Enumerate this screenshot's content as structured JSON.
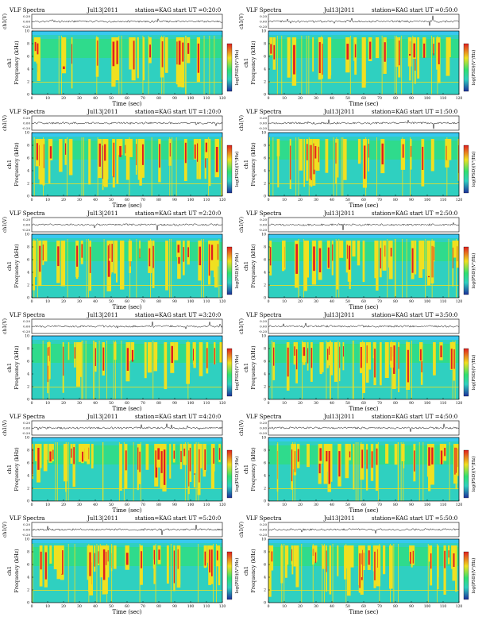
{
  "common": {
    "title_prefix": "VLF Spectra",
    "station": "station=KAG",
    "amp_label": "ch1(V)",
    "amp_ticks": [
      "0.20",
      "0.00",
      "-0.20"
    ],
    "ch_label": "ch1",
    "freq_label": "Frequency (kHz)",
    "freq_ticks": [
      "0",
      "2",
      "4",
      "6",
      "8",
      "10"
    ],
    "time_label": "Time (sec)",
    "time_ticks": [
      "0",
      "10",
      "20",
      "30",
      "40",
      "50",
      "60",
      "70",
      "80",
      "90",
      "100",
      "110",
      "120"
    ],
    "colorbar_label": "log(PSD)(V²/Hz)",
    "colors": {
      "background": "#2fd0c0",
      "mid": "#30e070",
      "high": "#f0e020",
      "peak": "#e02020",
      "low": "#2a8ad8",
      "band_top": "#38c8f0"
    }
  },
  "chart_data": [
    {
      "type": "heatmap",
      "date": "Jul13|2011",
      "start_ut": "start UT =0:20:0",
      "xlabel": "Time (sec)",
      "ylabel": "Frequency (kHz)",
      "xlim": [
        0,
        120
      ],
      "ylim": [
        0,
        10
      ],
      "colorbar": "log(PSD)(V²/Hz)"
    },
    {
      "type": "heatmap",
      "date": "Jul13|2011",
      "start_ut": "start UT =0:50:0",
      "xlabel": "Time (sec)",
      "ylabel": "Frequency (kHz)",
      "xlim": [
        0,
        120
      ],
      "ylim": [
        0,
        10
      ],
      "colorbar": "log(PSD)(V²/Hz)"
    },
    {
      "type": "heatmap",
      "date": "Jul13|2011",
      "start_ut": "start UT =1:20:0",
      "xlabel": "Time (sec)",
      "ylabel": "Frequency (kHz)",
      "xlim": [
        0,
        120
      ],
      "ylim": [
        0,
        10
      ],
      "colorbar": "log(PSD)(V²/Hz)"
    },
    {
      "type": "heatmap",
      "date": "Jul13|2011",
      "start_ut": "start UT =1:50:0",
      "xlabel": "Time (sec)",
      "ylabel": "Frequency (kHz)",
      "xlim": [
        0,
        120
      ],
      "ylim": [
        0,
        10
      ],
      "colorbar": "log(PSD)(V²/Hz)"
    },
    {
      "type": "heatmap",
      "date": "Jul13|2011",
      "start_ut": "start UT =2:20:0",
      "xlabel": "Time (sec)",
      "ylabel": "Frequency (kHz)",
      "xlim": [
        0,
        120
      ],
      "ylim": [
        0,
        10
      ],
      "colorbar": "log(PSD)(V²/Hz)"
    },
    {
      "type": "heatmap",
      "date": "Jul13|2011",
      "start_ut": "start UT =2:50:0",
      "xlabel": "Time (sec)",
      "ylabel": "Frequency (kHz)",
      "xlim": [
        0,
        120
      ],
      "ylim": [
        0,
        10
      ],
      "colorbar": "log(PSD)(V²/Hz)"
    },
    {
      "type": "heatmap",
      "date": "Jul13|2011",
      "start_ut": "start UT =3:20:0",
      "xlabel": "Time (sec)",
      "ylabel": "Frequency (kHz)",
      "xlim": [
        0,
        120
      ],
      "ylim": [
        0,
        10
      ],
      "colorbar": "log(PSD)(V²/Hz)"
    },
    {
      "type": "heatmap",
      "date": "Jul13|2011",
      "start_ut": "start UT =3:50:0",
      "xlabel": "Time (sec)",
      "ylabel": "Frequency (kHz)",
      "xlim": [
        0,
        120
      ],
      "ylim": [
        0,
        10
      ],
      "colorbar": "log(PSD)(V²/Hz)"
    },
    {
      "type": "heatmap",
      "date": "Jul13|2011",
      "start_ut": "start UT =4:20:0",
      "xlabel": "Time (sec)",
      "ylabel": "Frequency (kHz)",
      "xlim": [
        0,
        120
      ],
      "ylim": [
        0,
        10
      ],
      "colorbar": "log(PSD)(V²/Hz)"
    },
    {
      "type": "heatmap",
      "date": "Jul13|2011",
      "start_ut": "start UT =4:50:0",
      "xlabel": "Time (sec)",
      "ylabel": "Frequency (kHz)",
      "xlim": [
        0,
        120
      ],
      "ylim": [
        0,
        10
      ],
      "colorbar": "log(PSD)(V²/Hz)"
    },
    {
      "type": "heatmap",
      "date": "Jul13|2011",
      "start_ut": "start UT =5:20:0",
      "xlabel": "Time (sec)",
      "ylabel": "Frequency (kHz)",
      "xlim": [
        0,
        120
      ],
      "ylim": [
        0,
        10
      ],
      "colorbar": "log(PSD)(V²/Hz)"
    },
    {
      "type": "heatmap",
      "date": "Jul13|2011",
      "start_ut": "start UT =5:50:0",
      "xlabel": "Time (sec)",
      "ylabel": "Frequency (kHz)",
      "xlim": [
        0,
        120
      ],
      "ylim": [
        0,
        10
      ],
      "colorbar": "log(PSD)(V²/Hz)"
    }
  ]
}
